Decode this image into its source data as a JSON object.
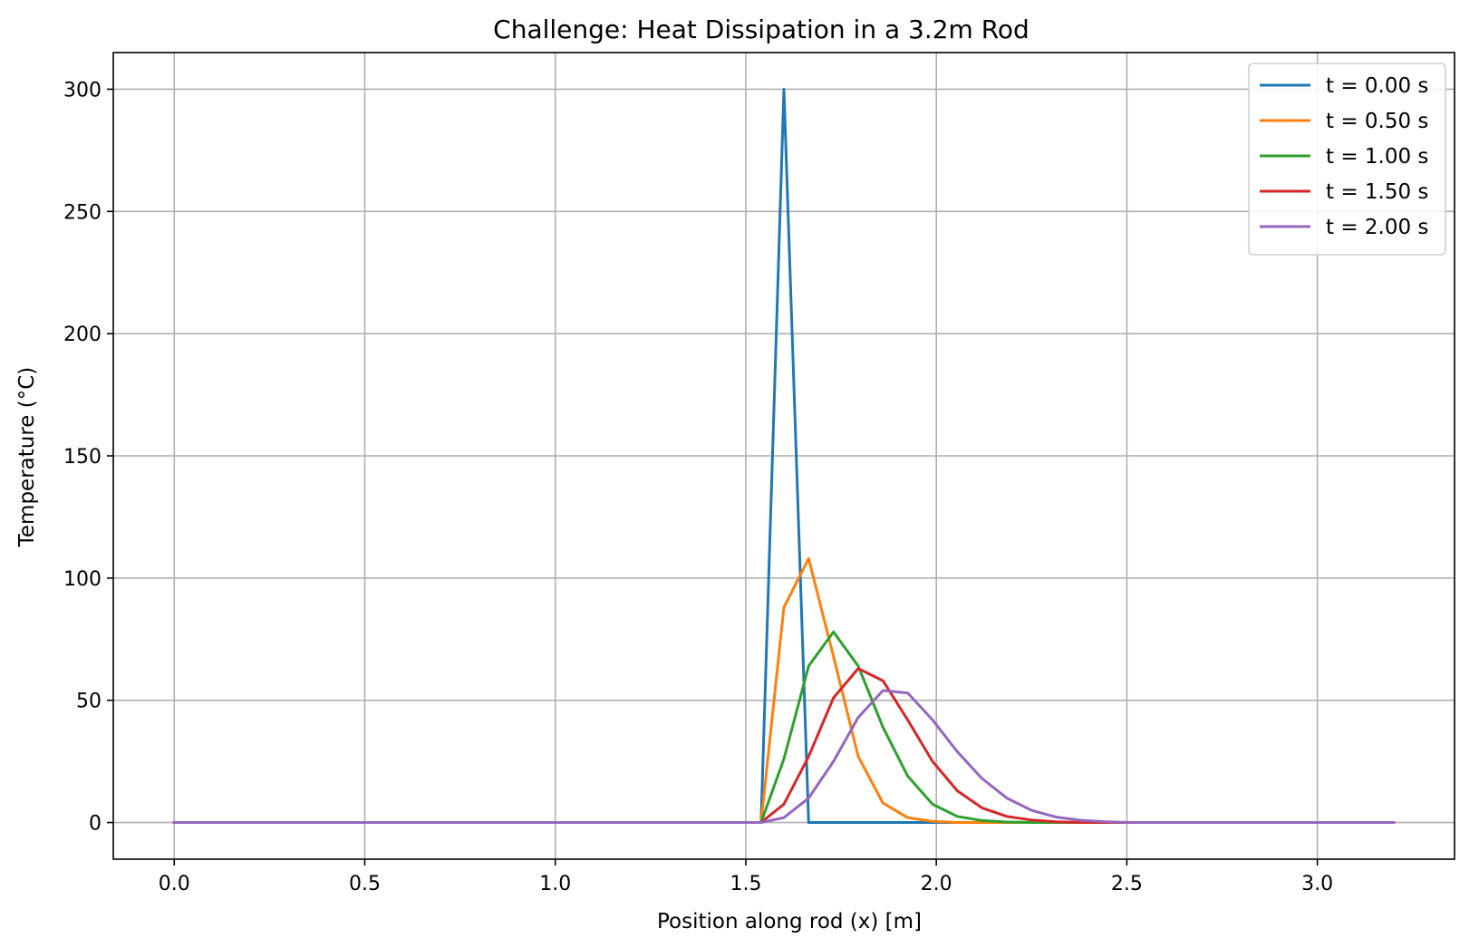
{
  "chart_data": {
    "type": "line",
    "title": "Challenge: Heat Dissipation in a 3.2m Rod",
    "xlabel": "Position along rod (x) [m]",
    "ylabel": "Temperature (°C)",
    "xlim": [
      -0.16,
      3.36
    ],
    "ylim": [
      -15,
      315
    ],
    "xticks": [
      0.0,
      0.5,
      1.0,
      1.5,
      2.0,
      2.5,
      3.0
    ],
    "xtick_labels": [
      "0.0",
      "0.5",
      "1.0",
      "1.5",
      "2.0",
      "2.5",
      "3.0"
    ],
    "yticks": [
      0,
      50,
      100,
      150,
      200,
      250,
      300
    ],
    "ytick_labels": [
      "0",
      "50",
      "100",
      "150",
      "200",
      "250",
      "300"
    ],
    "grid": true,
    "legend_position": "top-right",
    "series": [
      {
        "name": "t = 0.00 s",
        "color": "#1f77b4",
        "points": [
          [
            0.0,
            0
          ],
          [
            1.54,
            0
          ],
          [
            1.6,
            300
          ],
          [
            1.665,
            0
          ],
          [
            3.2,
            0
          ]
        ]
      },
      {
        "name": "t = 0.50 s",
        "color": "#ff7f0e",
        "points": [
          [
            0.0,
            0
          ],
          [
            1.54,
            0
          ],
          [
            1.6,
            88
          ],
          [
            1.665,
            108
          ],
          [
            1.73,
            68
          ],
          [
            1.795,
            27
          ],
          [
            1.86,
            8
          ],
          [
            1.925,
            2
          ],
          [
            1.99,
            0.5
          ],
          [
            2.055,
            0
          ],
          [
            3.2,
            0
          ]
        ]
      },
      {
        "name": "t = 1.00 s",
        "color": "#2ca02c",
        "points": [
          [
            0.0,
            0
          ],
          [
            1.54,
            0
          ],
          [
            1.6,
            26
          ],
          [
            1.665,
            64
          ],
          [
            1.73,
            78
          ],
          [
            1.795,
            64
          ],
          [
            1.86,
            39
          ],
          [
            1.925,
            19
          ],
          [
            1.99,
            7.5
          ],
          [
            2.055,
            2.5
          ],
          [
            2.12,
            0.8
          ],
          [
            2.185,
            0.2
          ],
          [
            2.25,
            0
          ],
          [
            3.2,
            0
          ]
        ]
      },
      {
        "name": "t = 1.50 s",
        "color": "#d62728",
        "points": [
          [
            0.0,
            0
          ],
          [
            1.54,
            0
          ],
          [
            1.6,
            7.5
          ],
          [
            1.665,
            27
          ],
          [
            1.73,
            51
          ],
          [
            1.795,
            63
          ],
          [
            1.86,
            58
          ],
          [
            1.925,
            42
          ],
          [
            1.99,
            25
          ],
          [
            2.055,
            13
          ],
          [
            2.12,
            6
          ],
          [
            2.185,
            2.5
          ],
          [
            2.25,
            1
          ],
          [
            2.315,
            0.3
          ],
          [
            2.38,
            0
          ],
          [
            3.2,
            0
          ]
        ]
      },
      {
        "name": "t = 2.00 s",
        "color": "#9467bd",
        "points": [
          [
            0.0,
            0
          ],
          [
            1.54,
            0
          ],
          [
            1.6,
            2
          ],
          [
            1.665,
            10
          ],
          [
            1.73,
            25
          ],
          [
            1.795,
            43
          ],
          [
            1.86,
            54
          ],
          [
            1.925,
            53
          ],
          [
            1.99,
            42
          ],
          [
            2.055,
            29
          ],
          [
            2.12,
            18
          ],
          [
            2.185,
            10
          ],
          [
            2.25,
            5
          ],
          [
            2.315,
            2.2
          ],
          [
            2.38,
            0.9
          ],
          [
            2.445,
            0.3
          ],
          [
            2.51,
            0
          ],
          [
            3.2,
            0
          ]
        ]
      }
    ]
  }
}
